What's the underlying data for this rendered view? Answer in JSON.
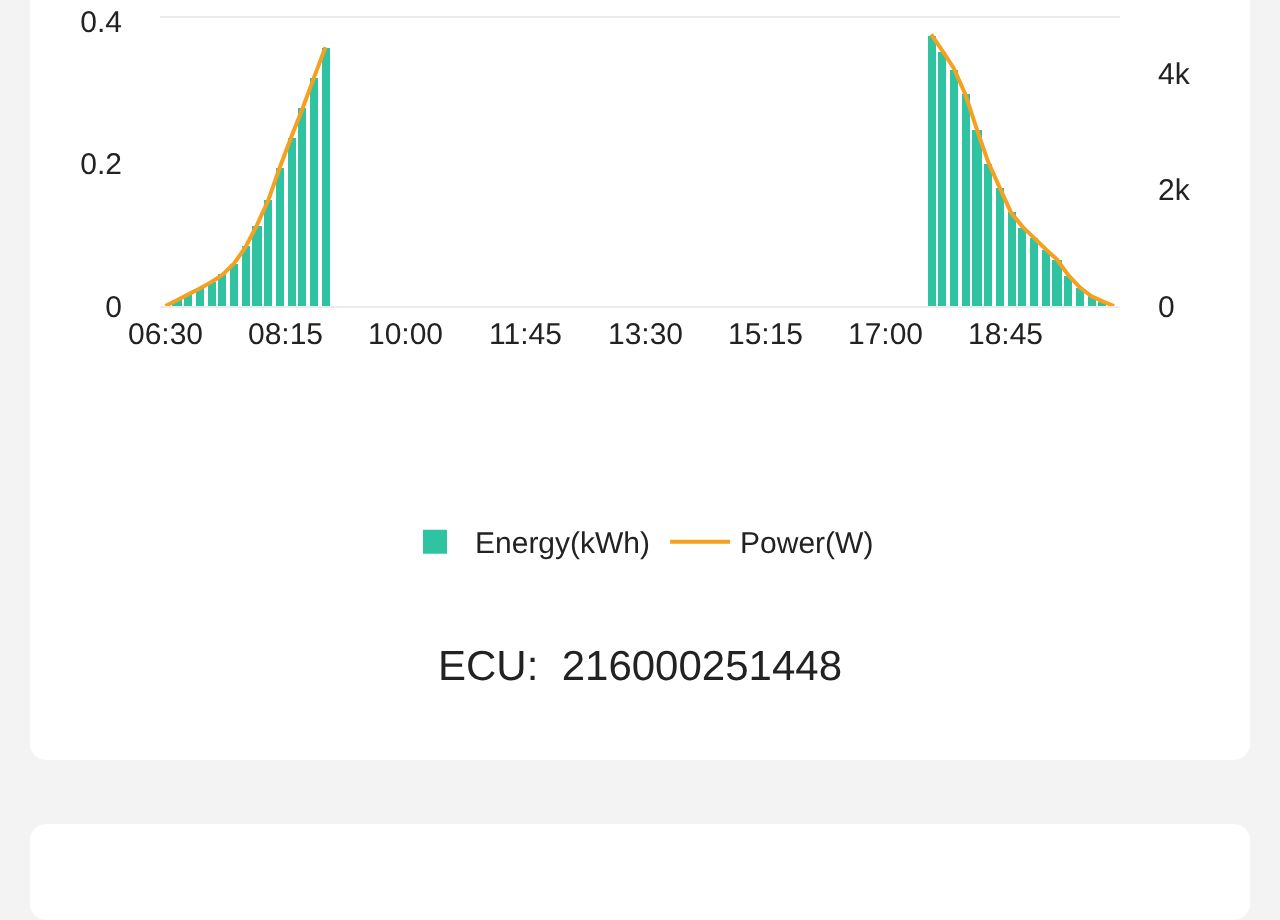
{
  "chart_data": {
    "type": "bar",
    "annotations": [
      "ECU:  216000251448"
    ],
    "x": [
      6.5,
      6.6667,
      6.8333,
      7,
      7.1667,
      7.3333,
      7.5,
      7.6667,
      7.8333,
      8,
      8.1667,
      8.3333,
      8.5,
      8.6667,
      8.8333,
      9,
      9.1667,
      9.3333,
      9.5,
      9.6667,
      9.8333,
      10,
      10.1667,
      10.3333,
      10.5,
      10.6667,
      10.8333,
      11,
      11.1667,
      11.3333,
      11.5,
      11.6667,
      11.8333,
      12,
      12.1667,
      12.3333,
      12.5,
      12.6667,
      12.8333,
      13,
      13.1667,
      13.3333,
      13.5,
      13.6667,
      13.8333,
      14,
      14.1667,
      14.3333,
      14.5,
      14.6667,
      14.8333,
      15,
      15.1667,
      15.3333,
      15.5,
      15.6667,
      15.8333,
      16,
      16.1667,
      16.3333,
      16.5,
      16.6667,
      16.8333,
      17,
      17.1667,
      17.3333,
      17.5,
      17.6667,
      17.8333,
      18,
      18.1667,
      18.3333,
      18.5,
      18.6667,
      18.8333,
      19,
      19.1667,
      19.3333,
      19.5,
      19.6667,
      19.8333,
      20,
      20.1667,
      20.3333
    ],
    "series": [
      {
        "name": "Energy(kWh)",
        "color": "#2fc3a2",
        "values": [
          0,
          0.008,
          0.016,
          0.025,
          0.033,
          0.044,
          0.06,
          0.083,
          0.113,
          0.149,
          0.194,
          0.237,
          0.278,
          0.321,
          0.363,
          null,
          null,
          null,
          null,
          null,
          null,
          null,
          null,
          null,
          null,
          null,
          null,
          null,
          null,
          null,
          null,
          null,
          null,
          null,
          null,
          null,
          null,
          null,
          null,
          null,
          null,
          null,
          null,
          null,
          null,
          null,
          null,
          null,
          null,
          null,
          null,
          null,
          null,
          null,
          null,
          null,
          null,
          null,
          null,
          null,
          null,
          null,
          null,
          null,
          null,
          null,
          null,
          0.381,
          0.357,
          0.333,
          0.297,
          0.248,
          0.201,
          0.166,
          0.131,
          0.111,
          0.095,
          0.08,
          0.065,
          0.043,
          0.026,
          0.014,
          0.006,
          0
        ]
      },
      {
        "name": "Power(W)",
        "type": "line",
        "axis": "y2",
        "color": "#f5a11f",
        "values": [
          0,
          100,
          200,
          300,
          410,
          540,
          730,
          1010,
          1390,
          1820,
          2380,
          2900,
          3400,
          3930,
          4450,
          null,
          null,
          null,
          null,
          null,
          null,
          null,
          null,
          null,
          null,
          null,
          null,
          null,
          null,
          null,
          null,
          null,
          null,
          null,
          null,
          null,
          null,
          null,
          null,
          null,
          null,
          null,
          null,
          null,
          null,
          null,
          null,
          null,
          null,
          null,
          null,
          null,
          null,
          null,
          null,
          null,
          null,
          null,
          null,
          null,
          null,
          null,
          null,
          null,
          null,
          null,
          null,
          4670,
          4380,
          4080,
          3630,
          3030,
          2470,
          2030,
          1600,
          1360,
          1170,
          980,
          800,
          530,
          320,
          170,
          80,
          0
        ]
      }
    ],
    "xlim": [
      6.42,
      20.42
    ],
    "xticks": [
      {
        "value": 6.5,
        "label": "06:30"
      },
      {
        "value": 8.25,
        "label": "08:15"
      },
      {
        "value": 10,
        "label": "10:00"
      },
      {
        "value": 11.75,
        "label": "11:45"
      },
      {
        "value": 13.5,
        "label": "13:30"
      },
      {
        "value": 15.25,
        "label": "15:15"
      },
      {
        "value": 17,
        "label": "17:00"
      },
      {
        "value": 18.75,
        "label": "18:45"
      }
    ],
    "ylim": [
      0,
      0.405
    ],
    "yticks": [
      0,
      0.2,
      0.4
    ],
    "y2lim": [
      0,
      4950
    ],
    "y2ticks": [
      0,
      {
        "value": 2000,
        "label": "2k"
      },
      {
        "value": 4000,
        "label": "4k"
      }
    ],
    "grid": false,
    "legend": "bottom",
    "marker": "none",
    "line_style": "solid"
  }
}
